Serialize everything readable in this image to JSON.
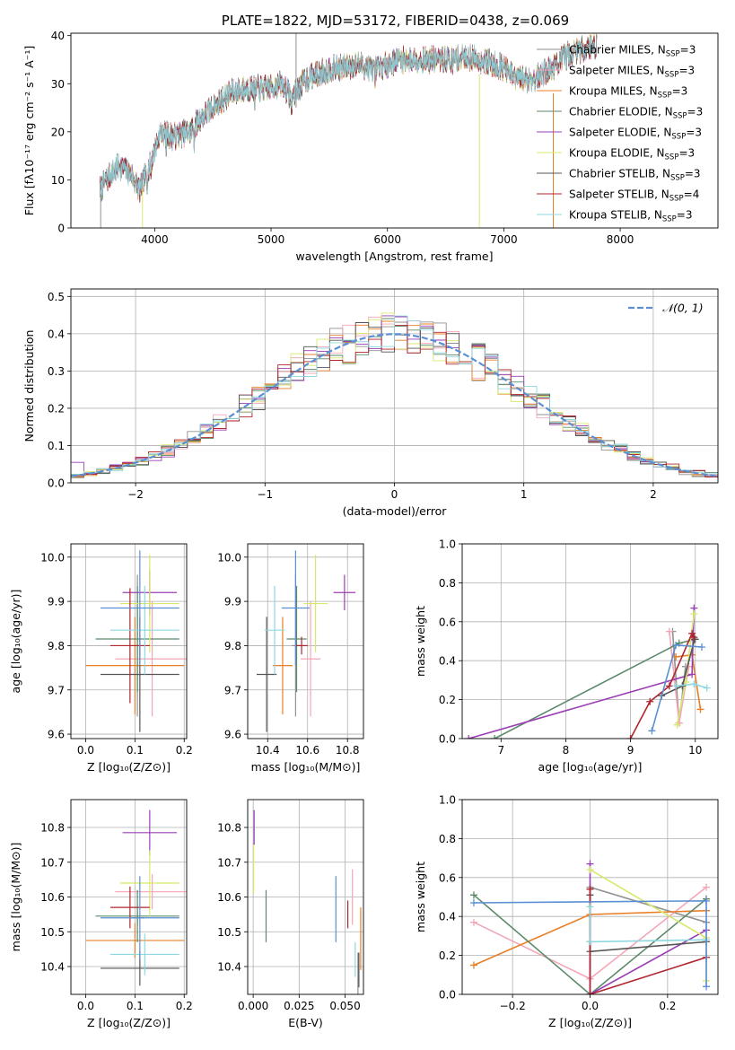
{
  "chart_data": [
    {
      "id": "spectrum",
      "type": "line",
      "title": "PLATE=1822, MJD=53172, FIBERID=0438, z=0.069",
      "xlabel": "wavelength [Angstrom, rest frame]",
      "ylabel": "Flux [fλ10⁻¹⁷ erg cm⁻² s⁻¹ A⁻¹]",
      "xlim": [
        3280,
        8840
      ],
      "ylim": [
        0,
        40.5
      ],
      "xticks": [
        4000,
        5000,
        6000,
        7000,
        8000
      ],
      "yticks": [
        0,
        10,
        20,
        30,
        40
      ],
      "grid": false,
      "legend": "upper-right",
      "continuum": [
        [
          3530,
          8
        ],
        [
          3620,
          11
        ],
        [
          3700,
          13
        ],
        [
          3800,
          11
        ],
        [
          3870,
          8
        ],
        [
          3960,
          13
        ],
        [
          4050,
          20
        ],
        [
          4150,
          19
        ],
        [
          4300,
          20
        ],
        [
          4400,
          23
        ],
        [
          4500,
          25
        ],
        [
          4650,
          28
        ],
        [
          4800,
          29
        ],
        [
          4950,
          29
        ],
        [
          5100,
          30
        ],
        [
          5175,
          27
        ],
        [
          5300,
          31
        ],
        [
          5500,
          33
        ],
        [
          5750,
          34
        ],
        [
          5900,
          33
        ],
        [
          6100,
          35
        ],
        [
          6300,
          35
        ],
        [
          6500,
          35
        ],
        [
          6700,
          35.5
        ],
        [
          6860,
          34.5
        ],
        [
          6990,
          33.5
        ],
        [
          7100,
          31
        ],
        [
          7250,
          31
        ],
        [
          7400,
          33
        ],
        [
          7550,
          36
        ],
        [
          7700,
          37.5
        ],
        [
          7800,
          38
        ]
      ],
      "series": [
        {
          "name": "Chabrier MILES, N",
          "sub": "SSP",
          "suffix": "=3",
          "color": "#929292"
        },
        {
          "name": "Salpeter MILES, N",
          "sub": "SSP",
          "suffix": "=3",
          "color": "#f4a6b6"
        },
        {
          "name": "Kroupa MILES, N",
          "sub": "SSP",
          "suffix": "=3",
          "color": "#e87f27"
        },
        {
          "name": "Chabrier ELODIE, N",
          "sub": "SSP",
          "suffix": "=3",
          "color": "#5b8a6a"
        },
        {
          "name": "Salpeter ELODIE, N",
          "sub": "SSP",
          "suffix": "=3",
          "color": "#9b3fb5"
        },
        {
          "name": "Kroupa ELODIE, N",
          "sub": "SSP",
          "suffix": "=3",
          "color": "#d8e86c"
        },
        {
          "name": "Chabrier STELIB, N",
          "sub": "SSP",
          "suffix": "=3",
          "color": "#555555"
        },
        {
          "name": "Salpeter STELIB, N",
          "sub": "SSP",
          "suffix": "=4",
          "color": "#b0252e"
        },
        {
          "name": "Kroupa STELIB, N",
          "sub": "SSP",
          "suffix": "=3",
          "color": "#8dd8e0"
        }
      ]
    },
    {
      "id": "residuals",
      "type": "line",
      "xlabel": "(data-model)/error",
      "ylabel": "Normed distribution",
      "xlim": [
        -2.5,
        2.5
      ],
      "ylim": [
        0,
        0.52
      ],
      "xticks": [
        -2,
        -1,
        0,
        1,
        2
      ],
      "yticks": [
        0.0,
        0.1,
        0.2,
        0.3,
        0.4,
        0.5
      ],
      "grid": true,
      "legend": "upper-right",
      "reference_label": "𝒩(0, 1)",
      "reference_color": "#5b8fd4",
      "bin_width": 0.1
    },
    {
      "id": "age-vs-z",
      "type": "scatter",
      "xlabel": "Z [log₁₀(Z/Z⊙)]",
      "ylabel": "age  [log₁₀(age/yr)]",
      "xlim": [
        -0.03,
        0.205
      ],
      "ylim": [
        9.59,
        10.03
      ],
      "xticks": [
        0.0,
        0.1,
        0.2
      ],
      "yticks": [
        9.6,
        9.7,
        9.8,
        9.9,
        10.0
      ],
      "grid": true,
      "points": [
        {
          "color": "#929292",
          "x": 0.105,
          "xerr": 0.015,
          "y": 9.8,
          "yerr": 0.16
        },
        {
          "color": "#f4a6b6",
          "x": 0.135,
          "xerr": 0.075,
          "y": 9.77,
          "yerr": 0.13
        },
        {
          "color": "#e87f27",
          "x": 0.1,
          "xerr": 0.1,
          "y": 9.755,
          "yerr": 0.11
        },
        {
          "color": "#5b8a6a",
          "x": 0.105,
          "xerr": 0.085,
          "y": 9.815,
          "yerr": 0.12
        },
        {
          "color": "#9b3fb5",
          "x": 0.13,
          "xerr": 0.055,
          "y": 9.92,
          "yerr": 0.05
        },
        {
          "color": "#d8e86c",
          "x": 0.13,
          "xerr": 0.06,
          "y": 9.895,
          "yerr": 0.11
        },
        {
          "color": "#555555",
          "x": 0.11,
          "xerr": 0.08,
          "y": 9.735,
          "yerr": 0.13
        },
        {
          "color": "#b0252e",
          "x": 0.09,
          "xerr": 0.04,
          "y": 9.8,
          "yerr": 0.13
        },
        {
          "color": "#8dd8e0",
          "x": 0.12,
          "xerr": 0.07,
          "y": 9.835,
          "yerr": 0.1
        },
        {
          "color": "#5b8fd4",
          "x": 0.11,
          "xerr": 0.08,
          "y": 9.885,
          "yerr": 0.13
        }
      ]
    },
    {
      "id": "age-vs-mass",
      "type": "scatter",
      "xlabel": "mass [log₁₀(M/M⊙)]",
      "xlim": [
        10.3,
        10.88
      ],
      "ylim": [
        9.59,
        10.03
      ],
      "xticks": [
        10.4,
        10.6,
        10.8
      ],
      "yticks": [
        9.6,
        9.7,
        9.8,
        9.9,
        10.0
      ],
      "grid": true,
      "points": [
        {
          "color": "#929292",
          "x": 10.54,
          "xerr": 0.02,
          "y": 9.8,
          "yerr": 0.16
        },
        {
          "color": "#f4a6b6",
          "x": 10.615,
          "xerr": 0.05,
          "y": 9.77,
          "yerr": 0.13
        },
        {
          "color": "#e87f27",
          "x": 10.475,
          "xerr": 0.05,
          "y": 9.755,
          "yerr": 0.11
        },
        {
          "color": "#5b8a6a",
          "x": 10.545,
          "xerr": 0.05,
          "y": 9.815,
          "yerr": 0.12
        },
        {
          "color": "#9b3fb5",
          "x": 10.785,
          "xerr": 0.055,
          "y": 9.92,
          "yerr": 0.04
        },
        {
          "color": "#d8e86c",
          "x": 10.64,
          "xerr": 0.06,
          "y": 9.895,
          "yerr": 0.11
        },
        {
          "color": "#555555",
          "x": 10.395,
          "xerr": 0.05,
          "y": 9.735,
          "yerr": 0.13
        },
        {
          "color": "#b0252e",
          "x": 10.57,
          "xerr": 0.03,
          "y": 9.8,
          "yerr": 0.02
        },
        {
          "color": "#8dd8e0",
          "x": 10.435,
          "xerr": 0.05,
          "y": 9.835,
          "yerr": 0.1
        },
        {
          "color": "#5b8fd4",
          "x": 10.54,
          "xerr": 0.07,
          "y": 9.885,
          "yerr": 0.13
        }
      ]
    },
    {
      "id": "weight-vs-age",
      "type": "line",
      "xlabel": "age  [log₁₀(age/yr)]",
      "ylabel": "mass weight",
      "xlim": [
        6.4,
        10.35
      ],
      "ylim": [
        0,
        1.0
      ],
      "xticks": [
        7,
        8,
        9,
        10
      ],
      "yticks": [
        0.0,
        0.2,
        0.4,
        0.6,
        0.8,
        1.0
      ],
      "grid": true,
      "series": [
        {
          "color": "#929292",
          "x": [
            9.65,
            9.75,
            9.85
          ],
          "y": [
            0.55,
            0.08,
            0.37
          ]
        },
        {
          "color": "#f4a6b6",
          "x": [
            9.6,
            9.75,
            9.9
          ],
          "y": [
            0.55,
            0.08,
            0.37
          ]
        },
        {
          "color": "#e87f27",
          "x": [
            9.7,
            9.95,
            10.08
          ],
          "y": [
            0.42,
            0.43,
            0.15
          ]
        },
        {
          "color": "#5b8a6a",
          "x": [
            6.9,
            9.75,
            10.0
          ],
          "y": [
            0.0,
            0.49,
            0.51
          ]
        },
        {
          "color": "#9b3fb5",
          "x": [
            6.5,
            9.95,
            9.98
          ],
          "y": [
            0.0,
            0.33,
            0.67
          ]
        },
        {
          "color": "#d8e86c",
          "x": [
            9.72,
            9.85,
            9.98
          ],
          "y": [
            0.07,
            0.29,
            0.64
          ]
        },
        {
          "color": "#555555",
          "x": [
            9.48,
            9.8,
            9.99
          ],
          "y": [
            0.22,
            0.27,
            0.51
          ]
        },
        {
          "color": "#b0252e",
          "x": [
            9.0,
            9.3,
            9.6,
            9.95,
            9.98
          ],
          "y": [
            0.0,
            0.19,
            0.27,
            0.54,
            0.52
          ]
        },
        {
          "color": "#8dd8e0",
          "x": [
            9.7,
            9.98,
            10.18
          ],
          "y": [
            0.27,
            0.28,
            0.26
          ]
        },
        {
          "color": "#5b8fd4",
          "x": [
            9.33,
            9.7,
            10.1
          ],
          "y": [
            0.04,
            0.48,
            0.47
          ]
        }
      ]
    },
    {
      "id": "mass-vs-z",
      "type": "scatter",
      "xlabel": "Z [log₁₀(Z/Z⊙)]",
      "ylabel": "mass [log₁₀(M/M⊙)]",
      "xlim": [
        -0.03,
        0.205
      ],
      "ylim": [
        10.32,
        10.88
      ],
      "xticks": [
        0.0,
        0.1,
        0.2
      ],
      "yticks": [
        10.4,
        10.5,
        10.6,
        10.7,
        10.8
      ],
      "grid": true,
      "points": [
        {
          "color": "#929292",
          "x": 0.105,
          "xerr": 0.015,
          "y": 10.54,
          "yerr": 0.02
        },
        {
          "color": "#f4a6b6",
          "x": 0.135,
          "xerr": 0.075,
          "y": 10.615,
          "yerr": 0.05
        },
        {
          "color": "#e87f27",
          "x": 0.1,
          "xerr": 0.1,
          "y": 10.475,
          "yerr": 0.05
        },
        {
          "color": "#5b8a6a",
          "x": 0.105,
          "xerr": 0.085,
          "y": 10.545,
          "yerr": 0.075
        },
        {
          "color": "#9b3fb5",
          "x": 0.13,
          "xerr": 0.055,
          "y": 10.785,
          "yerr": 0.065
        },
        {
          "color": "#d8e86c",
          "x": 0.13,
          "xerr": 0.06,
          "y": 10.64,
          "yerr": 0.095
        },
        {
          "color": "#555555",
          "x": 0.11,
          "xerr": 0.08,
          "y": 10.395,
          "yerr": 0.05
        },
        {
          "color": "#b0252e",
          "x": 0.09,
          "xerr": 0.04,
          "y": 10.57,
          "yerr": 0.06
        },
        {
          "color": "#8dd8e0",
          "x": 0.12,
          "xerr": 0.07,
          "y": 10.435,
          "yerr": 0.06
        },
        {
          "color": "#5b8fd4",
          "x": 0.11,
          "xerr": 0.08,
          "y": 10.54,
          "yerr": 0.12
        }
      ]
    },
    {
      "id": "mass-vs-ebv",
      "type": "scatter",
      "xlabel": "E(B-V)",
      "xlim": [
        -0.003,
        0.06
      ],
      "ylim": [
        10.32,
        10.88
      ],
      "xticks": [
        0.0,
        0.025,
        0.05
      ],
      "xtick_labels": [
        "0.000",
        "0.025",
        "0.050"
      ],
      "yticks": [
        10.4,
        10.5,
        10.6,
        10.7,
        10.8
      ],
      "grid": true,
      "points": [
        {
          "color": "#929292",
          "x": 0.057,
          "y": 10.37,
          "yerr": 0.07
        },
        {
          "color": "#f4a6b6",
          "x": 0.054,
          "y": 10.6,
          "yerr": 0.08
        },
        {
          "color": "#e87f27",
          "x": 0.0585,
          "y": 10.48,
          "yerr": 0.09
        },
        {
          "color": "#5b8a6a",
          "x": 0.007,
          "y": 10.545,
          "yerr": 0.075
        },
        {
          "color": "#9b3fb5",
          "x": 0.0005,
          "y": 10.8,
          "yerr": 0.05
        },
        {
          "color": "#d8e86c",
          "x": 0.0002,
          "y": 10.68,
          "yerr": 0.07
        },
        {
          "color": "#555555",
          "x": 0.0575,
          "y": 10.39,
          "yerr": 0.05
        },
        {
          "color": "#b0252e",
          "x": 0.0515,
          "y": 10.55,
          "yerr": 0.04
        },
        {
          "color": "#8dd8e0",
          "x": 0.0555,
          "y": 10.42,
          "yerr": 0.05
        },
        {
          "color": "#5b8fd4",
          "x": 0.045,
          "y": 10.565,
          "yerr": 0.095
        }
      ]
    },
    {
      "id": "weight-vs-z",
      "type": "line",
      "xlabel": "Z [log₁₀(Z/Z⊙)]",
      "ylabel": "mass weight",
      "xlim": [
        -0.33,
        0.33
      ],
      "ylim": [
        0,
        1.0
      ],
      "xticks": [
        -0.2,
        0.0,
        0.2
      ],
      "xtick_labels": [
        "−0.2",
        "0.0",
        "0.2"
      ],
      "yticks": [
        0.0,
        0.2,
        0.4,
        0.6,
        0.8,
        1.0
      ],
      "grid": true,
      "series": [
        {
          "color": "#929292",
          "x": [
            0.0,
            0.0,
            0.3
          ],
          "y": [
            0.08,
            0.55,
            0.37
          ]
        },
        {
          "color": "#f4a6b6",
          "x": [
            -0.3,
            0.0,
            0.3
          ],
          "y": [
            0.37,
            0.08,
            0.55
          ]
        },
        {
          "color": "#e87f27",
          "x": [
            -0.3,
            0.0,
            0.3
          ],
          "y": [
            0.15,
            0.41,
            0.43
          ]
        },
        {
          "color": "#5b8a6a",
          "x": [
            -0.3,
            0.0,
            0.3
          ],
          "y": [
            0.51,
            0.0,
            0.49
          ]
        },
        {
          "color": "#9b3fb5",
          "x": [
            0.0,
            0.0,
            0.3
          ],
          "y": [
            0.67,
            0.0,
            0.33
          ]
        },
        {
          "color": "#d8e86c",
          "x": [
            0.0,
            0.3,
            0.3
          ],
          "y": [
            0.64,
            0.29,
            0.07
          ]
        },
        {
          "color": "#555555",
          "x": [
            0.0,
            0.0,
            0.3
          ],
          "y": [
            0.51,
            0.22,
            0.27
          ]
        },
        {
          "color": "#b0252e",
          "x": [
            0.0,
            0.0,
            0.0,
            0.3
          ],
          "y": [
            0.54,
            0.27,
            0.0,
            0.19
          ]
        },
        {
          "color": "#8dd8e0",
          "x": [
            0.0,
            0.0,
            0.3
          ],
          "y": [
            0.45,
            0.27,
            0.28
          ]
        },
        {
          "color": "#5b8fd4",
          "x": [
            -0.3,
            0.3,
            0.3
          ],
          "y": [
            0.47,
            0.48,
            0.04
          ]
        }
      ]
    }
  ]
}
